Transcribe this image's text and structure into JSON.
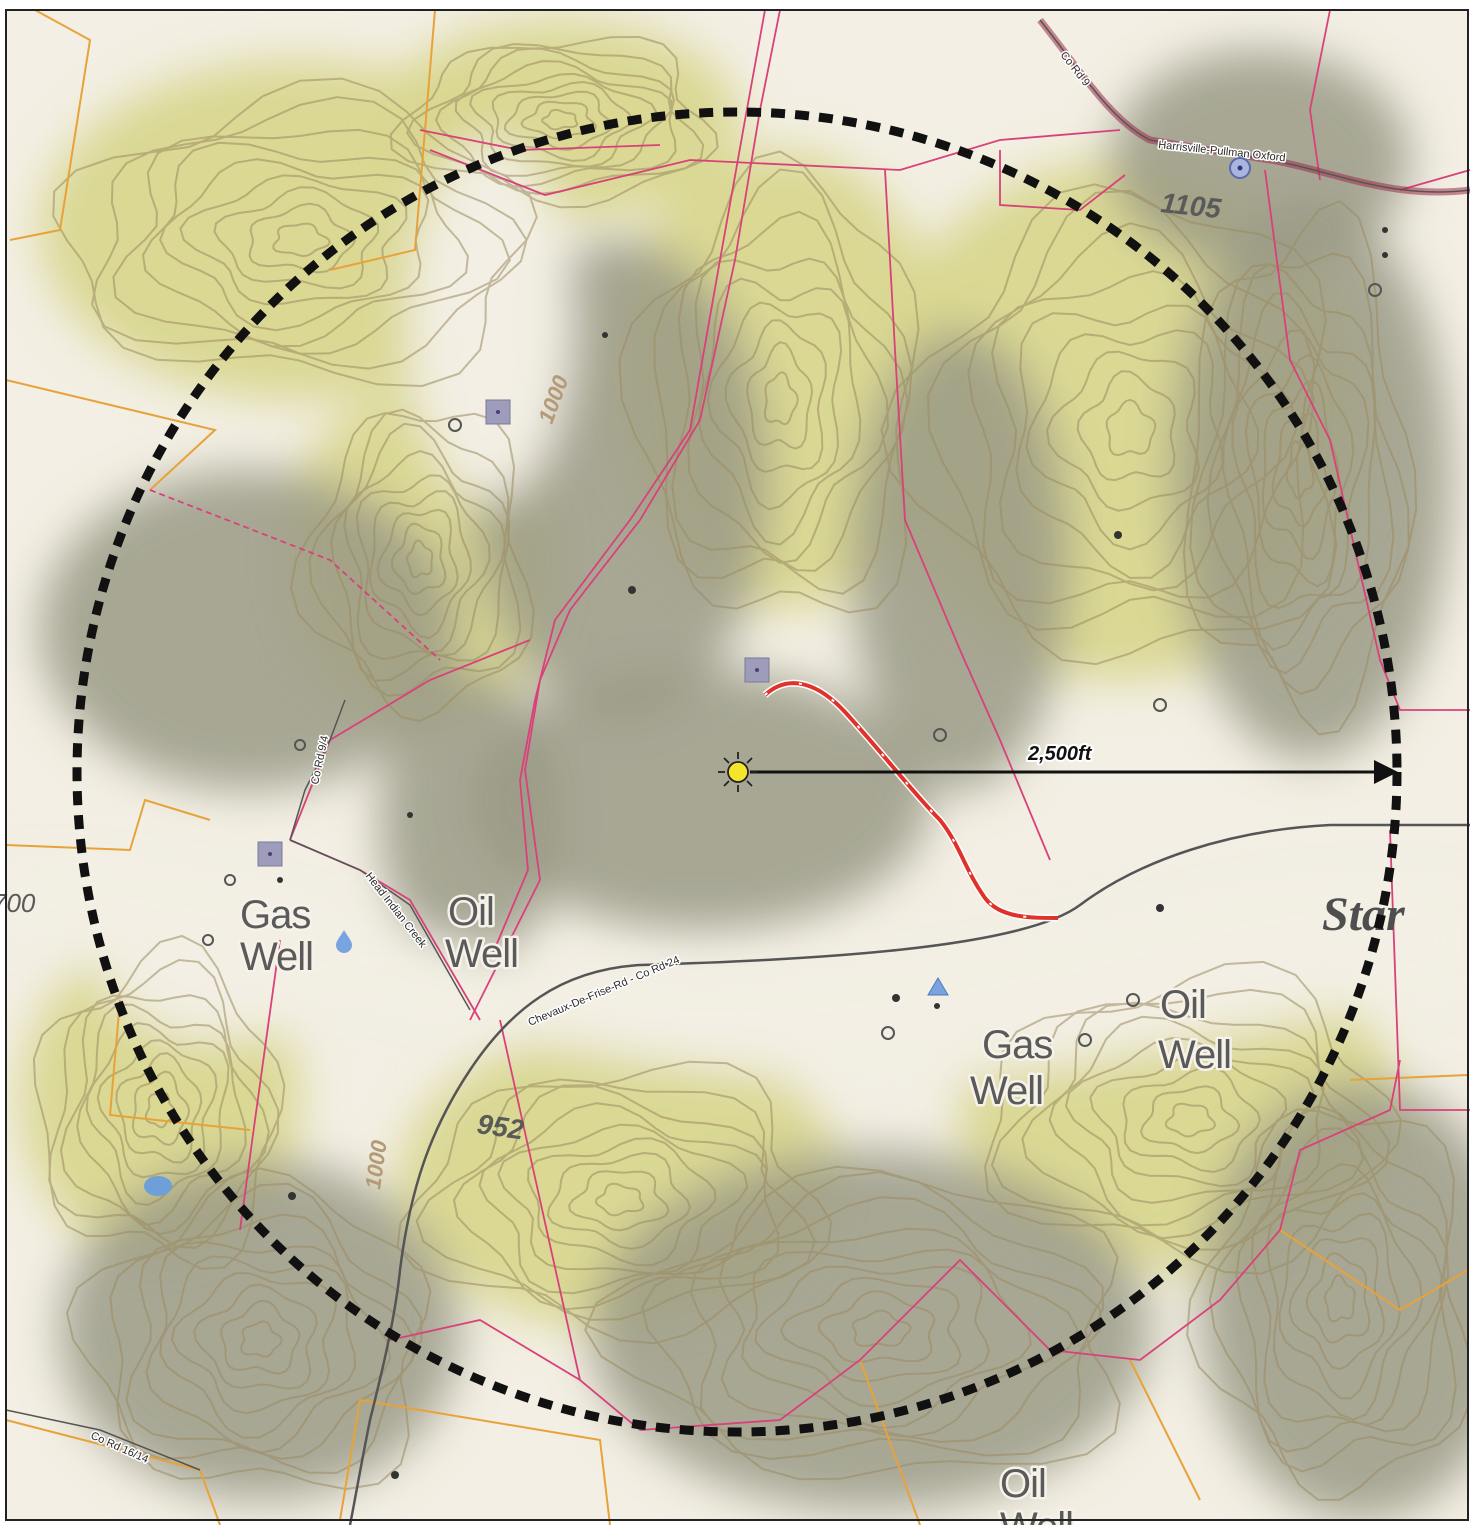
{
  "map": {
    "colors": {
      "terrain_light": "#f3efe4",
      "terrain_green": "#d8d68e",
      "terrain_shadow": "#9a9a86",
      "contour": "#9b8a62",
      "parcel_line": "#d9417a",
      "boundary_line": "#e8a23a",
      "road": "#555555",
      "highlight_road": "#9d2b4a",
      "radius_circle": "#111111",
      "pipeline": "#e0322a",
      "site_marker": "#f5e52a",
      "water": "#6f9fd8"
    },
    "roads": {
      "harrisville": "Harrisville-Pullman Oxford",
      "co_rd_9": "Co Rd 9",
      "co_rd_9_4": "Co Rd 9/4",
      "head_indian_creek": "Head Indian Creek",
      "chevaux": "Chevaux-De-Frise-Rd - Co Rd 24",
      "co_rd_16_14": "Co Rd 16/14"
    },
    "topo_labels": {
      "gas_well_left_1": "Gas",
      "gas_well_left_2": "Well",
      "oil_well_mid_1": "Oil",
      "oil_well_mid_2": "Well",
      "oil_well_right_1": "Oil",
      "oil_well_right_2": "Well",
      "gas_well_center_1": "Gas",
      "gas_well_center_2": "Well",
      "oil_well_bottom_1": "Oil",
      "oil_well_bottom_2": "Well",
      "place_partial": "Star",
      "partial_left": "700"
    },
    "elevations": {
      "top": "1105",
      "road": "952",
      "contour_top": "1000",
      "contour_bottom": "1000"
    },
    "radius_label": "2,500ft",
    "icons": {
      "site": "sun-icon",
      "well": "square-well-icon",
      "benchmark": "triangle-benchmark-icon",
      "water": "water-drop-icon",
      "control_point": "circle-point-icon"
    }
  }
}
